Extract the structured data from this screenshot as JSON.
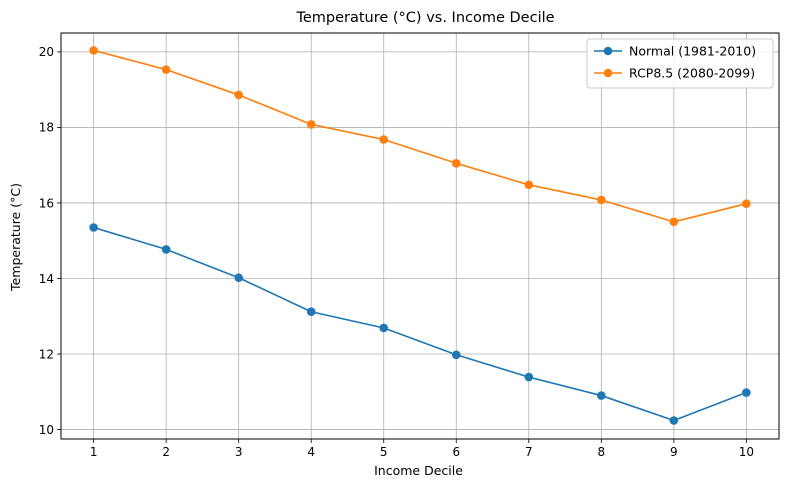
{
  "chart_data": {
    "type": "line",
    "title": "Temperature (°C) vs. Income Decile",
    "xlabel": "Income Decile",
    "ylabel": "Temperature (°C)",
    "x": [
      1,
      2,
      3,
      4,
      5,
      6,
      7,
      8,
      9,
      10
    ],
    "xticks": [
      "1",
      "2",
      "3",
      "4",
      "5",
      "6",
      "7",
      "8",
      "9",
      "10"
    ],
    "yticks": [
      "10",
      "12",
      "14",
      "16",
      "18",
      "20"
    ],
    "xlim": [
      0.55,
      10.45
    ],
    "ylim": [
      9.75,
      20.5
    ],
    "grid": true,
    "legend_position": "top-right",
    "series": [
      {
        "name": "Normal (1981-2010)",
        "color": "#1f77b4",
        "values": [
          15.35,
          14.77,
          14.02,
          13.12,
          12.69,
          11.98,
          11.39,
          10.9,
          10.24,
          10.98
        ]
      },
      {
        "name": "RCP8.5 (2080-2099)",
        "color": "#ff7f0e",
        "values": [
          20.04,
          19.53,
          18.86,
          18.08,
          17.68,
          17.05,
          16.48,
          16.08,
          15.5,
          15.98
        ]
      }
    ]
  }
}
